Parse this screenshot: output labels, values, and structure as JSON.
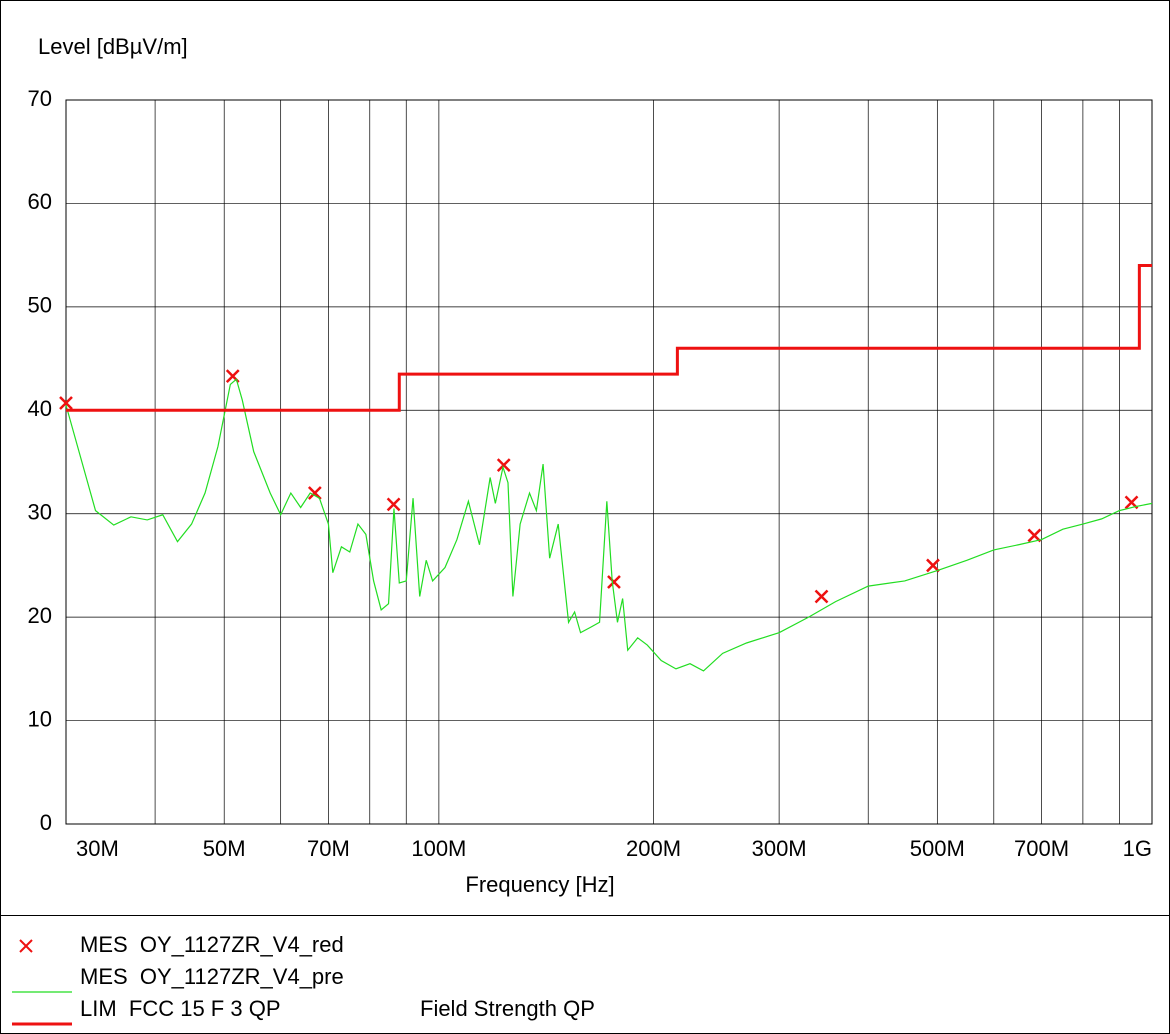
{
  "chart_data": {
    "type": "line",
    "y_label": "Level [dBµV/m]",
    "x_label": "Frequency [Hz]",
    "log_x": true,
    "grid": true,
    "xlim": [
      30000000.0,
      1000000000.0
    ],
    "ylim": [
      0,
      70
    ],
    "yticks": [
      0,
      10,
      20,
      30,
      40,
      50,
      60,
      70
    ],
    "xticks": [
      {
        "value": 30000000.0,
        "label": "30M"
      },
      {
        "value": 50000000.0,
        "label": "50M"
      },
      {
        "value": 70000000.0,
        "label": "70M"
      },
      {
        "value": 100000000.0,
        "label": "100M"
      },
      {
        "value": 200000000.0,
        "label": "200M"
      },
      {
        "value": 300000000.0,
        "label": "300M"
      },
      {
        "value": 500000000.0,
        "label": "500M"
      },
      {
        "value": 700000000.0,
        "label": "700M"
      },
      {
        "value": 1000000000.0,
        "label": "1G"
      }
    ],
    "xgrid": [
      40000000.0,
      50000000.0,
      60000000.0,
      70000000.0,
      80000000.0,
      90000000.0,
      100000000.0,
      200000000.0,
      300000000.0,
      400000000.0,
      500000000.0,
      600000000.0,
      700000000.0,
      800000000.0,
      900000000.0
    ],
    "series": [
      {
        "name": "MES  OY_1127ZR_V4_red",
        "marker": "x",
        "color": "#ee1111",
        "x": [
          30000000.0,
          51400000.0,
          67000000.0,
          86400000.0,
          123300000.0,
          176000000.0,
          344000000.0,
          493000000.0,
          684000000.0,
          936000000.0
        ],
        "values": [
          40.7,
          43.3,
          32.0,
          30.9,
          34.7,
          23.4,
          22.0,
          25.0,
          27.9,
          31.1
        ]
      },
      {
        "name": "MES  OY_1127ZR_V4_pre",
        "color": "#22dd22",
        "x": [
          30000000.0,
          33000000.0,
          35000000.0,
          37000000.0,
          39000000.0,
          41000000.0,
          43000000.0,
          45000000.0,
          47000000.0,
          49000000.0,
          51000000.0,
          52000000.0,
          53000000.0,
          55000000.0,
          58000000.0,
          60000000.0,
          62000000.0,
          64000000.0,
          66000000.0,
          68000000.0,
          70000000.0,
          71000000.0,
          73000000.0,
          75000000.0,
          77000000.0,
          79000000.0,
          81000000.0,
          83000000.0,
          85000000.0,
          86500000.0,
          88000000.0,
          90000000.0,
          92000000.0,
          94000000.0,
          96000000.0,
          98000000.0,
          102000000.0,
          106000000.0,
          110000000.0,
          114000000.0,
          118000000.0,
          120000000.0,
          123000000.0,
          125000000.0,
          127000000.0,
          130000000.0,
          134000000.0,
          137000000.0,
          140000000.0,
          143000000.0,
          147000000.0,
          152000000.0,
          155000000.0,
          158000000.0,
          163000000.0,
          168000000.0,
          172000000.0,
          175000000.0,
          178000000.0,
          181000000.0,
          184000000.0,
          190000000.0,
          196000000.0,
          205000000.0,
          215000000.0,
          225000000.0,
          235000000.0,
          250000000.0,
          270000000.0,
          300000000.0,
          330000000.0,
          360000000.0,
          400000000.0,
          450000000.0,
          500000000.0,
          550000000.0,
          600000000.0,
          650000000.0,
          700000000.0,
          750000000.0,
          800000000.0,
          850000000.0,
          900000000.0,
          950000000.0,
          1000000000.0
        ],
        "values": [
          40.5,
          30.3,
          28.9,
          29.7,
          29.4,
          29.9,
          27.3,
          29,
          32,
          36.5,
          42.5,
          43,
          41,
          36,
          32,
          29.9,
          32,
          30.6,
          32,
          31.5,
          29,
          24.3,
          26.8,
          26.3,
          29,
          28,
          23.5,
          20.7,
          21.3,
          30.5,
          23.3,
          23.5,
          31.5,
          22,
          25.5,
          23.5,
          24.8,
          27.5,
          31.2,
          27,
          33.5,
          31,
          34.5,
          33,
          22,
          29,
          32,
          30.3,
          34.8,
          25.7,
          29,
          19.5,
          20.5,
          18.5,
          19,
          19.5,
          31.2,
          23.5,
          19.5,
          21.8,
          16.8,
          18,
          17.3,
          15.8,
          15,
          15.5,
          14.8,
          16.5,
          17.5,
          18.5,
          20,
          21.5,
          23,
          23.5,
          24.5,
          25.5,
          26.5,
          27,
          27.5,
          28.5,
          29,
          29.5,
          30.3,
          30.7,
          31
        ]
      },
      {
        "name": "LIM  FCC 15 F 3 QP",
        "description": "Field Strength QP",
        "step": true,
        "color": "#ee1111",
        "x": [
          30000000.0,
          88000000.0,
          216000000.0,
          960000000.0,
          1000000000.0
        ],
        "values": [
          40,
          43.5,
          46,
          54,
          54
        ]
      }
    ]
  }
}
